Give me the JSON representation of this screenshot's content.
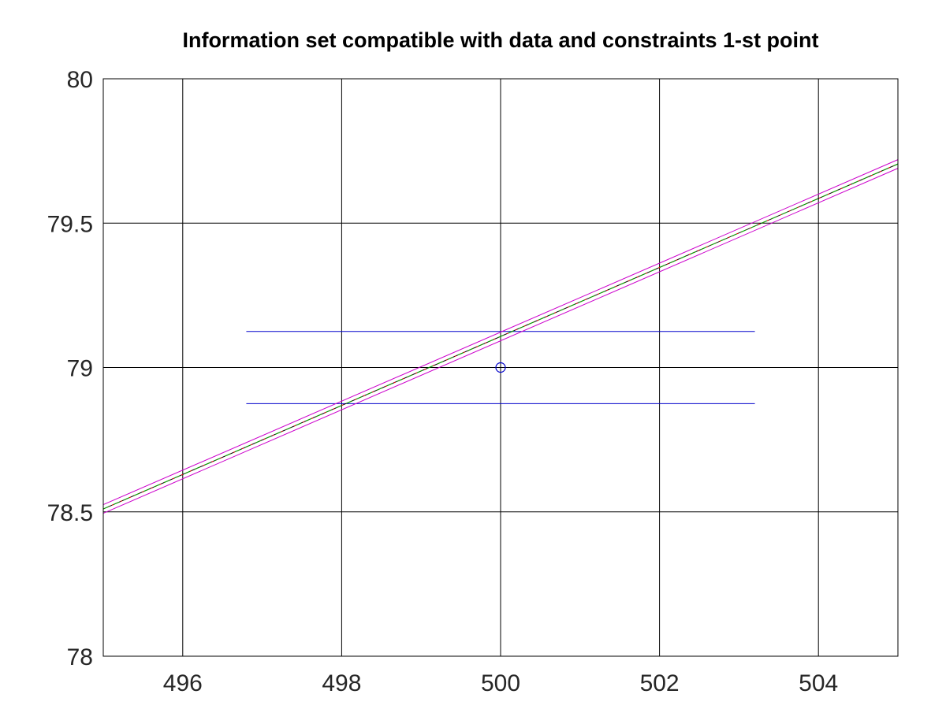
{
  "chart_data": {
    "type": "line",
    "title": "Information set compatible with data and constraints 1-st point",
    "xlabel": "",
    "ylabel": "",
    "xlim": [
      495,
      505
    ],
    "ylim": [
      78,
      80
    ],
    "grid": true,
    "x_ticks": [
      496,
      498,
      500,
      502,
      504
    ],
    "y_ticks": [
      78,
      78.5,
      79,
      79.5,
      80
    ],
    "x_tick_labels": [
      "496",
      "498",
      "500",
      "502",
      "504"
    ],
    "y_tick_labels": [
      "78",
      "78.5",
      "79",
      "79.5",
      "80"
    ],
    "point": {
      "x": 500,
      "y": 79,
      "color": "#0000cc",
      "marker": "circle"
    },
    "uncertainty_band": {
      "color": "#0000cc",
      "x_range": [
        496.8,
        503.2
      ],
      "y_lower": 78.875,
      "y_upper": 79.125
    },
    "series": [
      {
        "color": "#000000",
        "style": "solid",
        "x": [
          495,
          505
        ],
        "y": [
          78.51,
          79.705
        ]
      },
      {
        "color": "#ff0000",
        "style": "dotted",
        "x": [
          495,
          505
        ],
        "y": [
          78.51,
          79.705
        ]
      },
      {
        "color": "#00aa00",
        "style": "dashed",
        "x": [
          495,
          505
        ],
        "y": [
          78.51,
          79.705
        ]
      },
      {
        "color": "#cc00cc",
        "style": "solid",
        "x": [
          495,
          505
        ],
        "y": [
          78.525,
          79.72
        ]
      },
      {
        "color": "#cc00cc",
        "style": "solid",
        "x": [
          495,
          505
        ],
        "y": [
          78.495,
          79.69
        ]
      }
    ],
    "colors": {
      "axis": "#000000",
      "grid": "#000000",
      "tick_text": "#262626"
    }
  }
}
